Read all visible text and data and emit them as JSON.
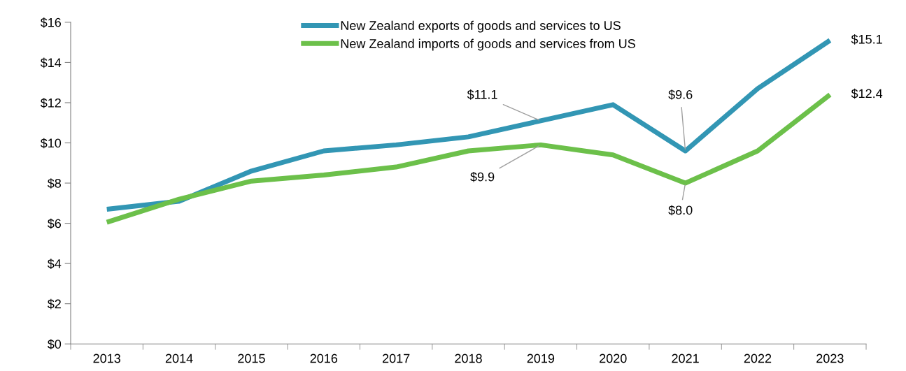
{
  "chart_data": {
    "type": "line",
    "categories": [
      "2013",
      "2014",
      "2015",
      "2016",
      "2017",
      "2018",
      "2019",
      "2020",
      "2021",
      "2022",
      "2023"
    ],
    "series": [
      {
        "name": "New Zealand exports of goods and services to US",
        "color": "#3296b4",
        "values": [
          6.7,
          7.1,
          8.6,
          9.6,
          9.9,
          10.3,
          11.1,
          11.9,
          9.6,
          12.7,
          15.1
        ]
      },
      {
        "name": "New Zealand imports of goods and services from US",
        "color": "#6cc04a",
        "values": [
          6.05,
          7.2,
          8.1,
          8.4,
          8.8,
          9.6,
          9.9,
          9.4,
          8.0,
          9.6,
          12.4
        ]
      }
    ],
    "ylim": [
      0,
      16
    ],
    "yticks": [
      {
        "value": 0,
        "label": "$0"
      },
      {
        "value": 2,
        "label": "$2"
      },
      {
        "value": 4,
        "label": "$4"
      },
      {
        "value": 6,
        "label": "$6"
      },
      {
        "value": 8,
        "label": "$8"
      },
      {
        "value": 10,
        "label": "$10"
      },
      {
        "value": 12,
        "label": "$12"
      },
      {
        "value": 14,
        "label": "$14"
      },
      {
        "value": 16,
        "label": "$16"
      }
    ],
    "annotations": [
      {
        "text": "$11.1",
        "x": "2019",
        "y": 11.1
      },
      {
        "text": "$9.9",
        "x": "2019",
        "y": 9.9
      },
      {
        "text": "$9.6",
        "x": "2021",
        "y": 9.6
      },
      {
        "text": "$8.0",
        "x": "2021",
        "y": 8.0
      },
      {
        "text": "$15.1",
        "x": "2023",
        "y": 15.1
      },
      {
        "text": "$12.4",
        "x": "2023",
        "y": 12.4
      }
    ],
    "legend": "top",
    "grid": false,
    "marker": "none",
    "line_style": "solid"
  }
}
